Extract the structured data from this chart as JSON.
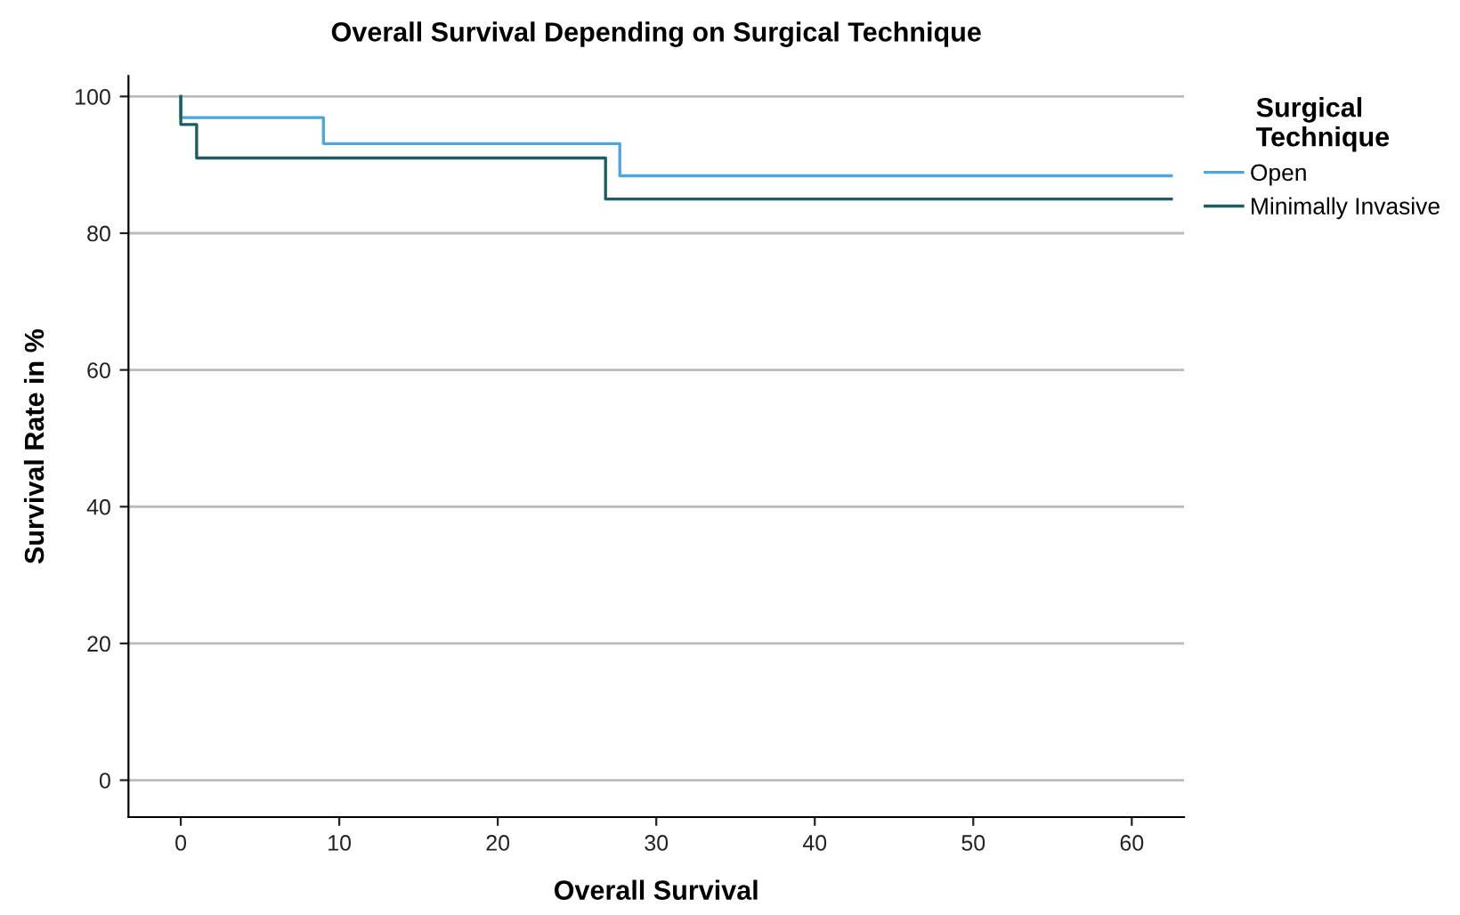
{
  "chart_data": {
    "type": "step",
    "title": "Overall Survival Depending on Surgical Technique",
    "xlabel": "Overall Survival",
    "ylabel": "Survival Rate in %",
    "legend_title": "Surgical\nTechnique",
    "series": [
      {
        "name": "Open",
        "color": "#4da6dc",
        "x": [
          0,
          0,
          9,
          27.7,
          62.5
        ],
        "values": [
          100,
          96.9,
          93.1,
          88.4,
          88.4
        ]
      },
      {
        "name": "Minimally Invasive",
        "color": "#1d5c63",
        "x": [
          0,
          0,
          1,
          26.8,
          62.5
        ],
        "values": [
          100,
          95.9,
          91,
          85,
          85
        ]
      }
    ],
    "xlim": [
      -3.3,
      63.3
    ],
    "ylim": [
      -5.4,
      103
    ],
    "xticks": [
      0,
      10,
      20,
      30,
      40,
      50,
      60
    ],
    "yticks": [
      0,
      20,
      40,
      60,
      80,
      100
    ],
    "grid": "y",
    "legend": "right",
    "line_style": "solid"
  }
}
